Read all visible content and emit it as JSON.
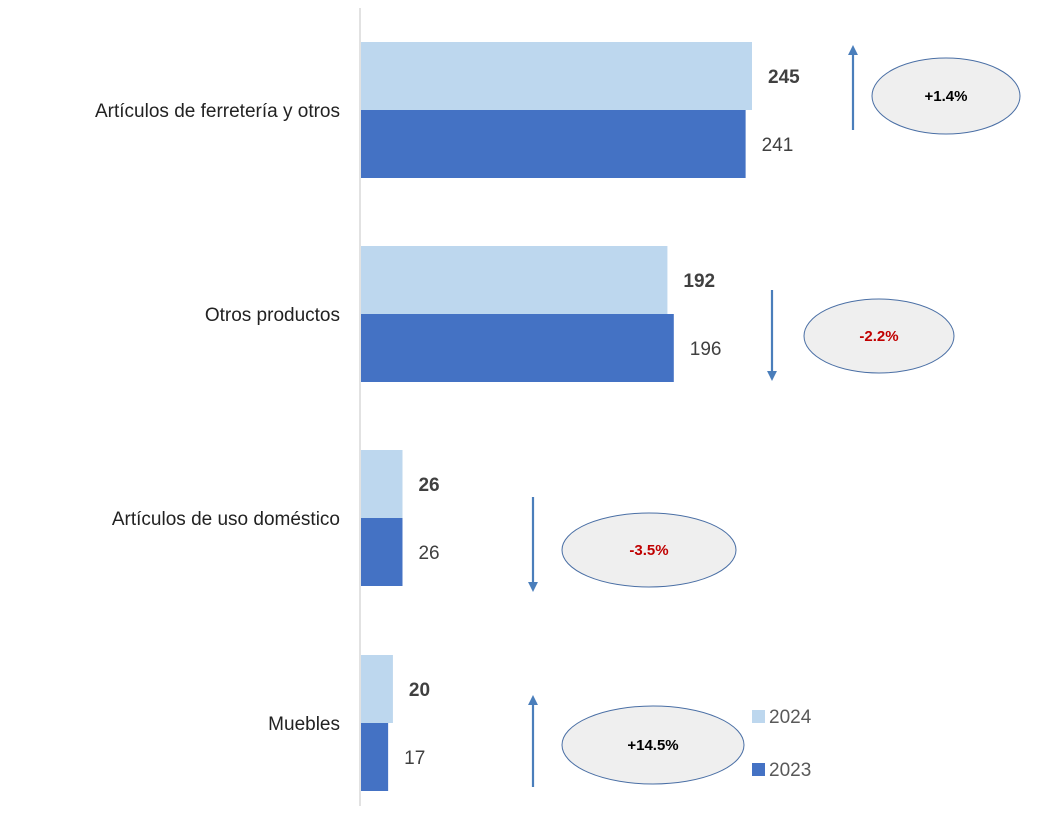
{
  "chart_data": {
    "type": "bar",
    "orientation": "horizontal",
    "categories": [
      "Artículos de ferretería y otros",
      "Otros productos",
      "Artículos de uso doméstico",
      "Muebles"
    ],
    "series": [
      {
        "name": "2024",
        "values": [
          245,
          192,
          26,
          20
        ],
        "color": "#BDD7EE"
      },
      {
        "name": "2023",
        "values": [
          241,
          196,
          26,
          17
        ],
        "color": "#4472C4"
      }
    ],
    "changes": [
      {
        "label": "+1.4%",
        "direction": "up",
        "color": "#000000"
      },
      {
        "label": "-2.2%",
        "direction": "down",
        "color": "#C00000"
      },
      {
        "label": "-3.5%",
        "direction": "down",
        "color": "#C00000"
      },
      {
        "label": "+14.5%",
        "direction": "up",
        "color": "#000000"
      }
    ],
    "legend": {
      "position": "bottom-right"
    },
    "grid": false,
    "xlim": [
      0,
      245
    ],
    "title": "",
    "xlabel": "",
    "ylabel": ""
  },
  "colors": {
    "axis": "#D9D9D9",
    "arrow": "#4A7EBB",
    "ellipse_fill": "#EFEFEF",
    "ellipse_stroke": "#4A6FA5"
  }
}
